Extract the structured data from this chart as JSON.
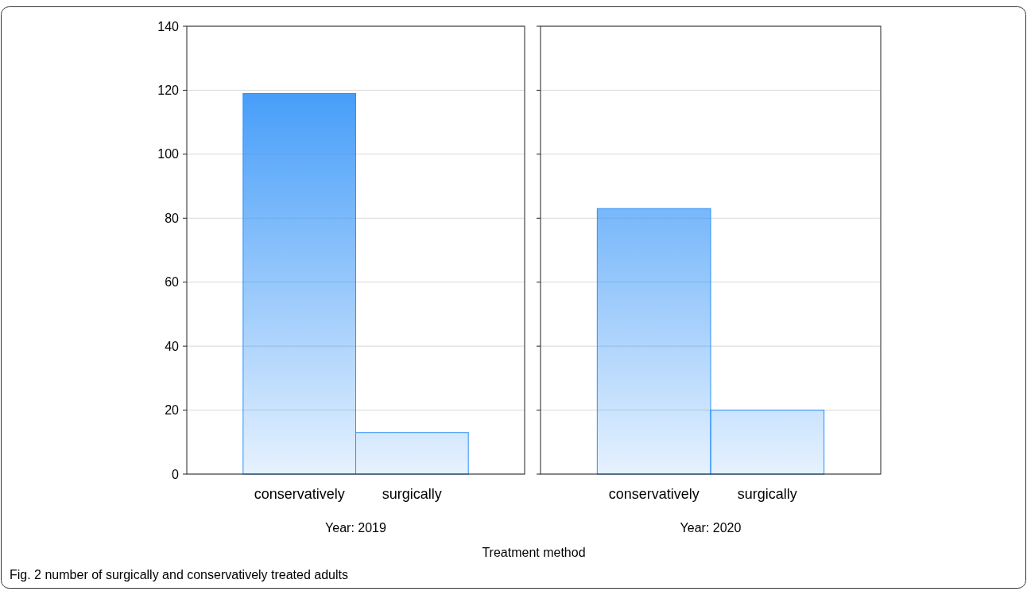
{
  "chart_data": [
    {
      "type": "bar",
      "xlabel": "Year: 2019",
      "categories": [
        "conservatively",
        "surgically"
      ],
      "values": [
        119,
        13
      ],
      "color": "#2b8ff8",
      "ylim": [
        0,
        140
      ],
      "yticks": [
        0,
        20,
        40,
        60,
        80,
        100,
        120,
        140
      ],
      "grid": "y",
      "annotations": [
        "Treatment method",
        "Fig. 2 number of surgically and conservatively treated adults"
      ]
    },
    {
      "type": "bar",
      "xlabel": "Year: 2020",
      "categories": [
        "conservatively",
        "surgically"
      ],
      "values": [
        83,
        20
      ],
      "color": "#2b8ff8",
      "ylim": [
        0,
        140
      ],
      "yticks": [
        0,
        20,
        40,
        60,
        80,
        100,
        120,
        140
      ],
      "grid": "y",
      "tick_labels": "x"
    }
  ]
}
